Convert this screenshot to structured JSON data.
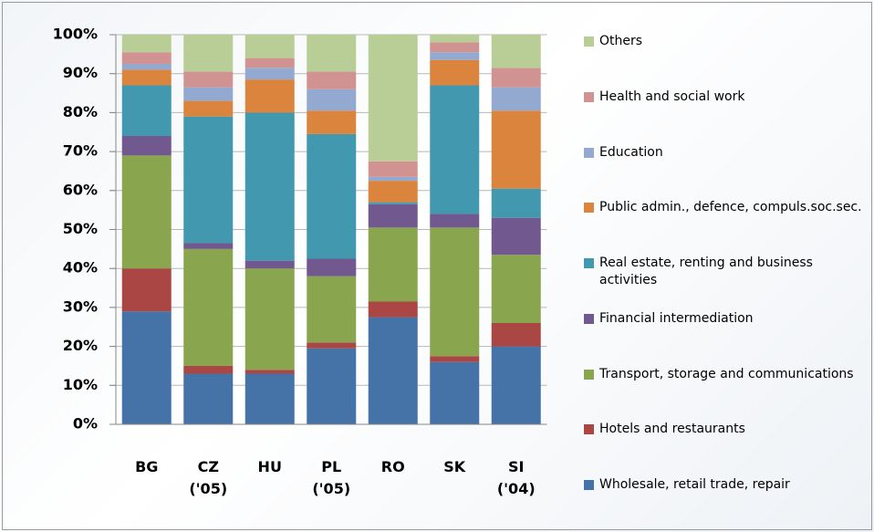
{
  "chart_data": {
    "type": "stacked_bar_100",
    "categories": [
      "BG",
      "CZ ('05)",
      "HU",
      "PL ('05)",
      "RO",
      "SK",
      "SI ('04)"
    ],
    "series": [
      {
        "name": "Wholesale, retail trade, repair",
        "color": "#4572a7",
        "values": [
          29,
          13,
          13,
          19.5,
          27.5,
          16,
          20
        ]
      },
      {
        "name": "Hotels and restaurants",
        "color": "#aa4643",
        "values": [
          11,
          2,
          1,
          1.5,
          4,
          1.5,
          6
        ]
      },
      {
        "name": "Transport, storage and communications",
        "color": "#89a54e",
        "values": [
          29,
          30,
          26,
          17,
          19,
          33,
          17.5
        ]
      },
      {
        "name": "Financial intermediation",
        "color": "#71588f",
        "values": [
          5,
          1.5,
          2,
          4.5,
          6,
          3.5,
          9.5
        ]
      },
      {
        "name": "Real estate, renting and business activities",
        "color": "#4198af",
        "values": [
          13,
          32.5,
          38,
          32,
          0.5,
          33,
          7.5
        ]
      },
      {
        "name": "Public admin., defence, compuls.soc.sec.",
        "color": "#db843d",
        "values": [
          4,
          4,
          8.5,
          6,
          5.5,
          6.5,
          20
        ]
      },
      {
        "name": "Education",
        "color": "#93a9cf",
        "values": [
          1.5,
          3.5,
          3,
          5.5,
          1,
          2,
          6
        ]
      },
      {
        "name": "Health and social work",
        "color": "#d19392",
        "values": [
          3,
          4,
          2.5,
          4.5,
          4,
          2.5,
          5
        ]
      },
      {
        "name": "Others",
        "color": "#b9cd96",
        "values": [
          4.5,
          9.5,
          6,
          9.5,
          32.5,
          2,
          8.5
        ]
      }
    ],
    "ylim": [
      0,
      100
    ],
    "yticks": [
      {
        "value": 0,
        "label": "0%"
      },
      {
        "value": 10,
        "label": "10%"
      },
      {
        "value": 20,
        "label": "20%"
      },
      {
        "value": 30,
        "label": "30%"
      },
      {
        "value": 40,
        "label": "40%"
      },
      {
        "value": 50,
        "label": "50%"
      },
      {
        "value": 60,
        "label": "60%"
      },
      {
        "value": 70,
        "label": "70%"
      },
      {
        "value": 80,
        "label": "80%"
      },
      {
        "value": 90,
        "label": "90%"
      },
      {
        "value": 100,
        "label": "100%"
      }
    ],
    "grid": true,
    "legend": "right"
  }
}
